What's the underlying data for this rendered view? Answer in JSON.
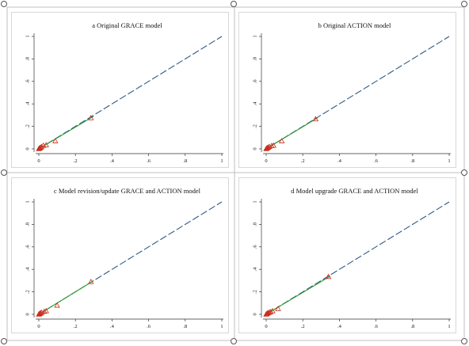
{
  "colors": {
    "reference_line": "#2f5a86",
    "fit_line": "#2e9b2e",
    "marker": "#cc2a1c",
    "frame": "#bfbfbf"
  },
  "chart_data": [
    {
      "type": "scatter",
      "title": "a  Original GRACE model",
      "xlim": [
        0,
        1
      ],
      "ylim": [
        0,
        1
      ],
      "x_ticks": [
        "0",
        ".2",
        ".4",
        ".6",
        ".8",
        "1"
      ],
      "y_ticks": [
        "0",
        ".2",
        ".4",
        ".6",
        ".8",
        "1"
      ],
      "points": [
        [
          0.0,
          0.0
        ],
        [
          0.003,
          0.005
        ],
        [
          0.006,
          0.008
        ],
        [
          0.01,
          0.013
        ],
        [
          0.015,
          0.018
        ],
        [
          0.025,
          0.03
        ],
        [
          0.04,
          0.035
        ],
        [
          0.09,
          0.07
        ],
        [
          0.285,
          0.275
        ]
      ],
      "fit_line": [
        [
          0.0,
          0.0
        ],
        [
          0.3,
          0.29
        ]
      ],
      "reference_line": [
        [
          0,
          0
        ],
        [
          1,
          1
        ]
      ]
    },
    {
      "type": "scatter",
      "title": "b  Original ACTION model",
      "xlim": [
        0,
        1
      ],
      "ylim": [
        0,
        1
      ],
      "x_ticks": [
        "0",
        ".2",
        ".4",
        ".6",
        ".8",
        "1"
      ],
      "y_ticks": [
        "0",
        ".2",
        ".4",
        ".6",
        ".8",
        "1"
      ],
      "points": [
        [
          0.0,
          0.0
        ],
        [
          0.004,
          0.006
        ],
        [
          0.008,
          0.01
        ],
        [
          0.012,
          0.014
        ],
        [
          0.018,
          0.02
        ],
        [
          0.03,
          0.028
        ],
        [
          0.04,
          0.03
        ],
        [
          0.085,
          0.07
        ],
        [
          0.27,
          0.265
        ]
      ],
      "fit_line": [
        [
          0.0,
          0.0
        ],
        [
          0.28,
          0.275
        ]
      ],
      "reference_line": [
        [
          0,
          0
        ],
        [
          1,
          1
        ]
      ]
    },
    {
      "type": "scatter",
      "title": "c  Model revision/update GRACE and ACTION model",
      "xlim": [
        0,
        1
      ],
      "ylim": [
        0,
        1
      ],
      "x_ticks": [
        "0",
        ".2",
        ".4",
        ".6",
        ".8",
        "1"
      ],
      "y_ticks": [
        "0",
        ".2",
        ".4",
        ".6",
        ".8",
        "1"
      ],
      "points": [
        [
          0.0,
          0.0
        ],
        [
          0.003,
          0.004
        ],
        [
          0.006,
          0.008
        ],
        [
          0.01,
          0.012
        ],
        [
          0.015,
          0.016
        ],
        [
          0.03,
          0.025
        ],
        [
          0.04,
          0.03
        ],
        [
          0.1,
          0.08
        ],
        [
          0.285,
          0.29
        ]
      ],
      "fit_line": [
        [
          0.0,
          0.0
        ],
        [
          0.3,
          0.3
        ]
      ],
      "reference_line": [
        [
          0,
          0
        ],
        [
          1,
          1
        ]
      ]
    },
    {
      "type": "scatter",
      "title": "d  Model upgrade GRACE and ACTION model",
      "xlim": [
        0,
        1
      ],
      "ylim": [
        0,
        1
      ],
      "x_ticks": [
        "0",
        ".2",
        ".4",
        ".6",
        ".8",
        "1"
      ],
      "y_ticks": [
        "0",
        ".2",
        ".4",
        ".6",
        ".8",
        "1"
      ],
      "points": [
        [
          0.0,
          0.0
        ],
        [
          0.004,
          0.006
        ],
        [
          0.008,
          0.01
        ],
        [
          0.012,
          0.014
        ],
        [
          0.018,
          0.018
        ],
        [
          0.025,
          0.022
        ],
        [
          0.035,
          0.03
        ],
        [
          0.065,
          0.05
        ],
        [
          0.34,
          0.335
        ]
      ],
      "fit_line": [
        [
          0.0,
          0.0
        ],
        [
          0.35,
          0.34
        ]
      ],
      "reference_line": [
        [
          0,
          0
        ],
        [
          1,
          1
        ]
      ]
    }
  ]
}
